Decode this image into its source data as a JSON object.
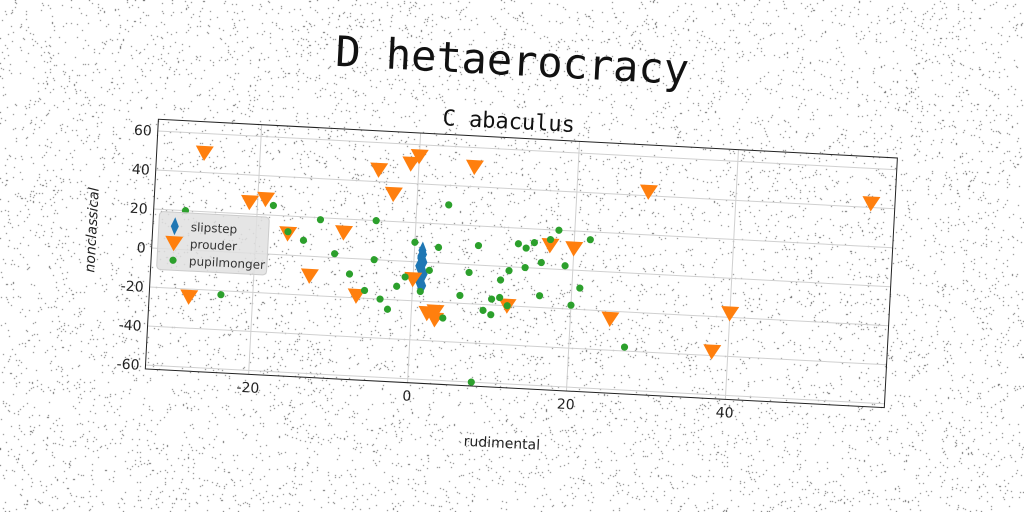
{
  "title": "D hetaerocracy",
  "chart_data": {
    "type": "scatter",
    "title": "C abaculus",
    "xlabel": "rudimental",
    "ylabel": "nonclassical",
    "xlim": [
      -33,
      60
    ],
    "ylim": [
      -62,
      66
    ],
    "xticks": [
      -20,
      0,
      20,
      40
    ],
    "yticks": [
      -60,
      -40,
      -20,
      0,
      20,
      40,
      60
    ],
    "grid": true,
    "legend": "left",
    "series": [
      {
        "name": "slipstep",
        "marker": "thin-diamond",
        "color": "#1f77b4",
        "x": [
          0.8,
          1.0,
          1.2,
          0.9,
          1.1,
          0.7,
          1.3,
          1.0,
          0.8,
          1.2,
          1.0,
          0.9
        ],
        "y": [
          -8,
          -4,
          0,
          2,
          4,
          -2,
          -6,
          6,
          -10,
          -12,
          1,
          3
        ]
      },
      {
        "name": "prouder",
        "marker": "triangle-down",
        "color": "#ff7f0e",
        "x": [
          -27,
          -21,
          -19,
          -16,
          -13,
          -9,
          -5,
          -3,
          -1,
          0,
          7,
          17,
          20,
          12,
          3,
          3,
          25,
          29,
          -28,
          -7,
          38,
          40,
          57,
          0,
          2
        ],
        "y": [
          50,
          26,
          28,
          11,
          -10,
          13,
          46,
          34,
          50,
          54,
          50,
          12,
          11,
          -20,
          -25,
          -29,
          -24,
          42,
          -24,
          -19,
          -38,
          -18,
          42,
          -9,
          -26
        ]
      },
      {
        "name": "pupilmonger",
        "marker": "circle",
        "color": "#2ca02c",
        "x": [
          -29,
          -18,
          -16,
          -14,
          -12,
          -10,
          -5,
          -5,
          -3,
          -1,
          0,
          1,
          3,
          4,
          7,
          8,
          10,
          11,
          12,
          13,
          14,
          15,
          16,
          17,
          18,
          20,
          21,
          2,
          -4,
          6,
          9,
          10,
          11,
          -2,
          -8,
          -24,
          12,
          19,
          27,
          8,
          4,
          -6,
          14,
          16,
          22
        ],
        "y": [
          20,
          25,
          12,
          8,
          19,
          2,
          20,
          0,
          -25,
          -8,
          10,
          -15,
          8,
          30,
          -4,
          10,
          -17,
          -7,
          -20,
          12,
          10,
          13,
          3,
          15,
          20,
          -18,
          -9,
          -4,
          -20,
          -16,
          -23,
          -25,
          -16,
          -13,
          -8,
          -22,
          -2,
          2,
          -38,
          -60,
          -28,
          -16,
          0,
          -14,
          16
        ]
      }
    ]
  }
}
